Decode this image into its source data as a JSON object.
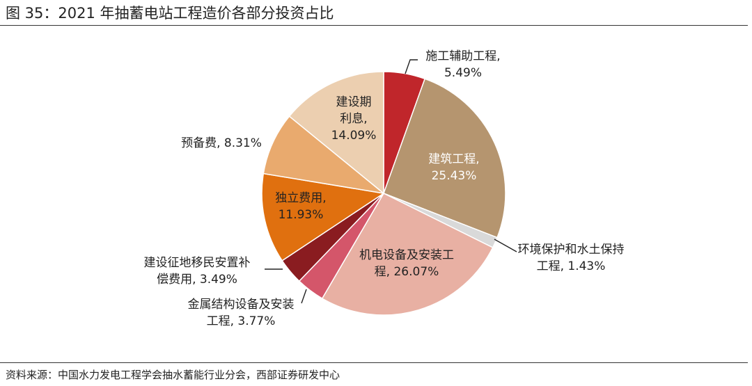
{
  "page": {
    "title": "图 35：2021 年抽蓄电站工程造价各部分投资占比",
    "source": "资料来源：中国水力发电工程学会抽水蓄能行业分会，西部证券研发中心"
  },
  "chart_data": {
    "type": "pie",
    "title": "",
    "start": "12 o'clock, clockwise",
    "slices": [
      {
        "name": "施工辅助工程",
        "value": 5.49,
        "label_lines": [
          "施工辅助工程,",
          "5.49%"
        ],
        "color": "#c0262b",
        "label_color": "#222222"
      },
      {
        "name": "建筑工程",
        "value": 25.43,
        "label_lines": [
          "建筑工程,",
          "25.43%"
        ],
        "color": "#b5956f",
        "label_color": "#ffffff"
      },
      {
        "name": "环境保护和水土保持工程",
        "value": 1.43,
        "label_lines": [
          "环境保护和水土保持",
          "工程, 1.43%"
        ],
        "color": "#d9d9d9",
        "label_color": "#222222"
      },
      {
        "name": "机电设备及安装工程",
        "value": 26.07,
        "label_lines": [
          "机电设备及安装工",
          "程, 26.07%"
        ],
        "color": "#e8b0a3",
        "label_color": "#222222"
      },
      {
        "name": "金属结构设备及安装工程",
        "value": 3.77,
        "label_lines": [
          "金属结构设备及安装",
          "工程, 3.77%"
        ],
        "color": "#d4566a",
        "label_color": "#222222"
      },
      {
        "name": "建设征地移民安置补偿费用",
        "value": 3.49,
        "label_lines": [
          "建设征地移民安置补",
          "偿费用, 3.49%"
        ],
        "color": "#8a1c20",
        "label_color": "#222222"
      },
      {
        "name": "独立费用",
        "value": 11.93,
        "label_lines": [
          "独立费用,",
          "11.93%"
        ],
        "color": "#e0700f",
        "label_color": "#222222"
      },
      {
        "name": "预备费",
        "value": 8.31,
        "label_lines": [
          "预备费, 8.31%"
        ],
        "color": "#e9aa6e",
        "label_color": "#222222"
      },
      {
        "name": "建设期利息",
        "value": 14.09,
        "label_lines": [
          "建设期",
          "利息,",
          "14.09%"
        ],
        "color": "#eccfb0",
        "label_color": "#222222"
      }
    ]
  }
}
